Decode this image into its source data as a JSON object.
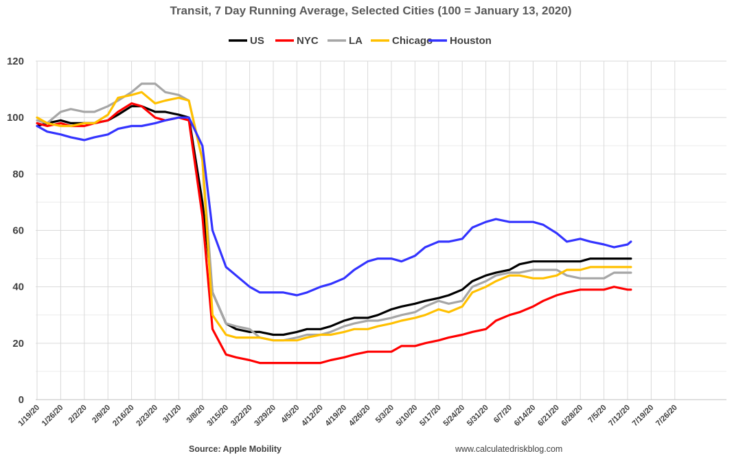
{
  "chart_data": {
    "type": "line",
    "title": "Transit, 7 Day Running Average, Selected Cities (100 = January 13, 2020)",
    "xlabel": "",
    "ylabel": "",
    "ylim": [
      0,
      120
    ],
    "yticks": [
      "0",
      "20",
      "40",
      "60",
      "80",
      "100",
      "120"
    ],
    "x_tick_labels": [
      "1/19/20",
      "1/26/20",
      "2/2/20",
      "2/9/20",
      "2/16/20",
      "2/23/20",
      "3/1/20",
      "3/8/20",
      "3/15/20",
      "3/22/20",
      "3/29/20",
      "4/5/20",
      "4/12/20",
      "4/19/20",
      "4/26/20",
      "5/3/20",
      "5/10/20",
      "5/17/20",
      "5/24/20",
      "5/31/20",
      "6/7/20",
      "6/14/20",
      "6/21/20",
      "6/28/20",
      "7/5/20",
      "7/12/20",
      "7/19/20",
      "7/26/20"
    ],
    "x_points": [
      0,
      3,
      7,
      10,
      14,
      17,
      21,
      24,
      28,
      31,
      35,
      38,
      42,
      45,
      49,
      52,
      56,
      59,
      63,
      66,
      70,
      73,
      77,
      80,
      84,
      87,
      91,
      94,
      98,
      101,
      105,
      108,
      112,
      115,
      119,
      122,
      126,
      129,
      133,
      136,
      140,
      143,
      147,
      150,
      154,
      157,
      161,
      164,
      168,
      171,
      175,
      176
    ],
    "series": [
      {
        "name": "US",
        "color": "#000000",
        "values": [
          97,
          98,
          99,
          98,
          98,
          98,
          99,
          101,
          104,
          104,
          102,
          102,
          101,
          100,
          70,
          38,
          27,
          25,
          24,
          24,
          23,
          23,
          24,
          25,
          25,
          26,
          28,
          29,
          29,
          30,
          32,
          33,
          34,
          35,
          36,
          37,
          39,
          42,
          44,
          45,
          46,
          48,
          49,
          49,
          49,
          49,
          49,
          50,
          50,
          50,
          50,
          50
        ]
      },
      {
        "name": "NYC",
        "color": "#ff0000",
        "values": [
          98,
          97,
          98,
          97,
          97,
          98,
          99,
          102,
          105,
          104,
          100,
          99,
          100,
          99,
          65,
          25,
          16,
          15,
          14,
          13,
          13,
          13,
          13,
          13,
          13,
          14,
          15,
          16,
          17,
          17,
          17,
          19,
          19,
          20,
          21,
          22,
          23,
          24,
          25,
          28,
          30,
          31,
          33,
          35,
          37,
          38,
          39,
          39,
          39,
          40,
          39,
          39
        ]
      },
      {
        "name": "LA",
        "color": "#a6a6a6",
        "values": [
          99,
          98,
          102,
          103,
          102,
          102,
          104,
          106,
          109,
          112,
          112,
          109,
          108,
          106,
          85,
          38,
          27,
          26,
          25,
          22,
          21,
          21,
          22,
          23,
          23,
          24,
          26,
          27,
          28,
          28,
          29,
          30,
          31,
          33,
          35,
          34,
          35,
          40,
          42,
          44,
          45,
          45,
          46,
          46,
          46,
          44,
          43,
          43,
          43,
          45,
          45,
          45
        ]
      },
      {
        "name": "Chicago",
        "color": "#ffc000",
        "values": [
          100,
          98,
          97,
          97,
          98,
          98,
          101,
          107,
          108,
          109,
          105,
          106,
          107,
          106,
          85,
          30,
          23,
          22,
          22,
          22,
          21,
          21,
          21,
          22,
          23,
          23,
          24,
          25,
          25,
          26,
          27,
          28,
          29,
          30,
          32,
          31,
          33,
          38,
          40,
          42,
          44,
          44,
          43,
          43,
          44,
          46,
          46,
          47,
          47,
          47,
          47,
          47
        ]
      },
      {
        "name": "Houston",
        "color": "#3333ff",
        "values": [
          97,
          95,
          94,
          93,
          92,
          93,
          94,
          96,
          97,
          97,
          98,
          99,
          100,
          100,
          90,
          60,
          47,
          44,
          40,
          38,
          38,
          38,
          37,
          38,
          40,
          41,
          43,
          46,
          49,
          50,
          50,
          49,
          51,
          54,
          56,
          56,
          57,
          61,
          63,
          64,
          63,
          63,
          63,
          62,
          59,
          56,
          57,
          56,
          55,
          54,
          55,
          56
        ]
      }
    ]
  },
  "footer": {
    "source": "Source: Apple Mobility",
    "website": "www.calculatedriskblog.com"
  }
}
